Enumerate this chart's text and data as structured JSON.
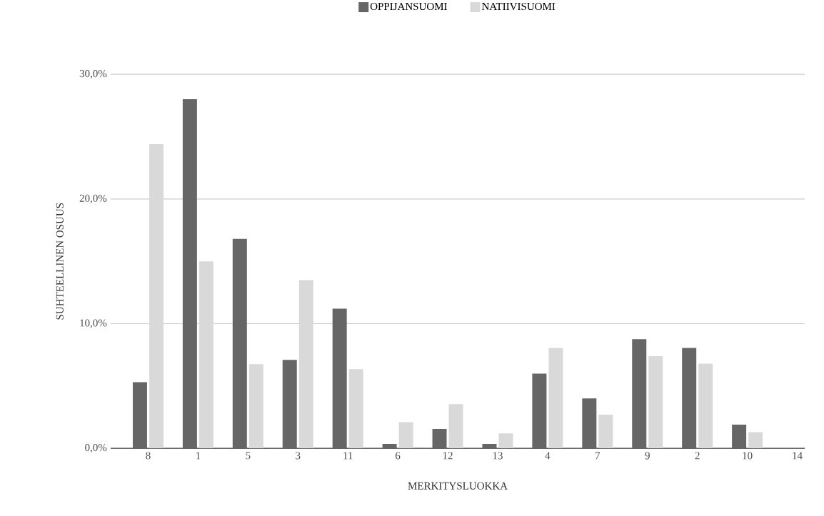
{
  "chart_data": {
    "type": "bar",
    "xlabel": "MERKITYSLUOKKA",
    "ylabel": "SUHTEELLINEN OSUUS",
    "categories": [
      "8",
      "1",
      "5",
      "3",
      "11",
      "6",
      "12",
      "13",
      "4",
      "7",
      "9",
      "2",
      "10",
      "14"
    ],
    "series": [
      {
        "name": "OPPIJANSUOMI",
        "color": "#666666",
        "values": [
          5.3,
          28.0,
          16.8,
          7.1,
          11.2,
          0.35,
          1.55,
          0.35,
          6.0,
          4.0,
          8.75,
          8.05,
          1.9,
          0
        ]
      },
      {
        "name": "NATIIVISUOMI",
        "color": "#d9d9d9",
        "values": [
          24.4,
          15.0,
          6.75,
          13.5,
          6.35,
          2.1,
          3.55,
          1.2,
          8.05,
          2.7,
          7.4,
          6.8,
          1.3,
          0
        ]
      }
    ],
    "ylim": [
      0,
      30
    ],
    "yticks": [
      {
        "value": 0,
        "label": "0,0%"
      },
      {
        "value": 10,
        "label": "10,0%"
      },
      {
        "value": 20,
        "label": "20,0%"
      },
      {
        "value": 30,
        "label": "30,0%"
      }
    ],
    "grid": "y",
    "legend": "top"
  }
}
